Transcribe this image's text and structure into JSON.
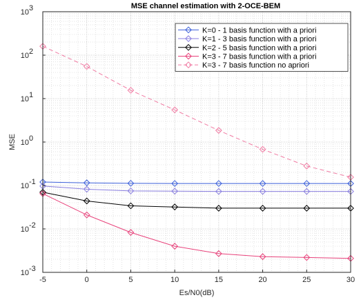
{
  "chart_data": {
    "type": "line",
    "title": "MSE channel estimation with 2-OCE-BEM",
    "xlabel": "Es/N0(dB)",
    "ylabel": "MSE",
    "xscale": "linear",
    "yscale": "log",
    "xlim": [
      -5,
      30
    ],
    "ylim": [
      0.001,
      1000
    ],
    "xticks": [
      -5,
      0,
      5,
      10,
      15,
      20,
      25,
      30
    ],
    "xtick_labels": [
      "-5",
      "0",
      "5",
      "10",
      "15",
      "20",
      "25",
      "30"
    ],
    "yticks": [
      0.001,
      0.01,
      0.1,
      1,
      10,
      100,
      1000
    ],
    "ytick_base": "10",
    "ytick_exponents": [
      "-3",
      "-2",
      "-1",
      "0",
      "1",
      "2",
      "3"
    ],
    "grid": true,
    "minor_grid": true,
    "legend_position": "top-right",
    "x": [
      -5,
      0,
      5,
      10,
      15,
      20,
      25,
      30
    ],
    "series": [
      {
        "name": "K=0 - 1 basis function with a priori",
        "color": "#3b5fd9",
        "dash": "solid",
        "marker": "diamond",
        "values": [
          0.12,
          0.115,
          0.112,
          0.111,
          0.111,
          0.111,
          0.111,
          0.111
        ]
      },
      {
        "name": "K=1 - 3 basis function with a priori",
        "color": "#8a7fe0",
        "dash": "solid",
        "marker": "diamond",
        "values": [
          0.097,
          0.082,
          0.075,
          0.074,
          0.073,
          0.073,
          0.073,
          0.073
        ]
      },
      {
        "name": "K=2 - 5 basis function with a priori",
        "color": "#000000",
        "dash": "solid",
        "marker": "diamond",
        "values": [
          0.07,
          0.044,
          0.034,
          0.032,
          0.03,
          0.03,
          0.03,
          0.03
        ]
      },
      {
        "name": "K=3 - 7 basis function with a priori",
        "color": "#e8417a",
        "dash": "solid",
        "marker": "diamond",
        "values": [
          0.065,
          0.021,
          0.0083,
          0.004,
          0.0027,
          0.0023,
          0.0022,
          0.0021
        ]
      },
      {
        "name": "K=3 - 7 basis function no apriori",
        "color": "#f07aa2",
        "dash": "dashed",
        "marker": "diamond",
        "values": [
          160,
          55,
          15.5,
          5.5,
          1.85,
          0.68,
          0.28,
          0.155
        ]
      }
    ]
  }
}
